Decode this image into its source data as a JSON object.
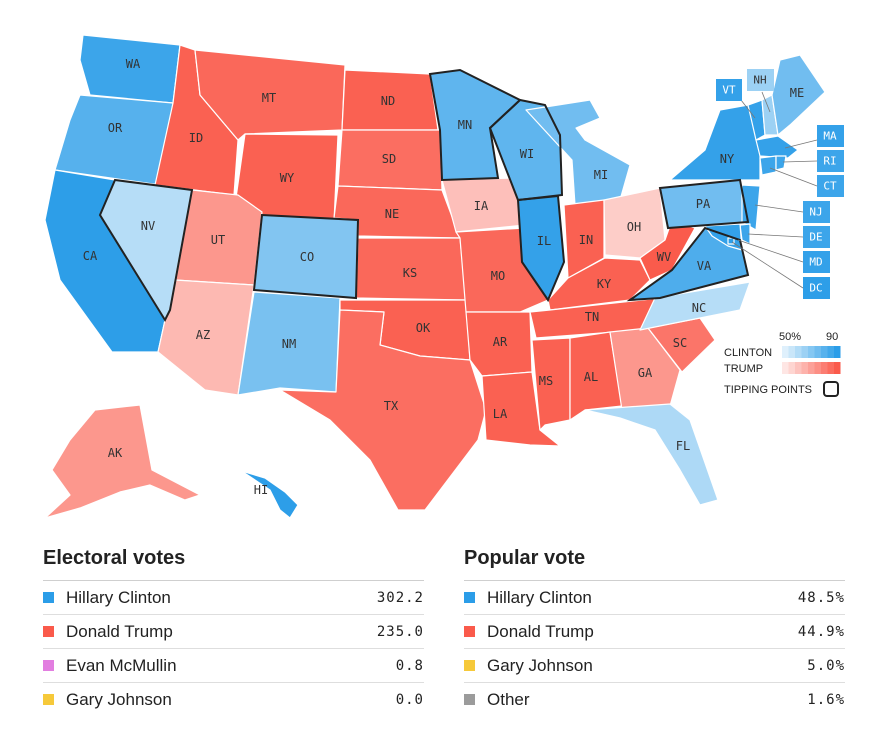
{
  "colors": {
    "clinton": "#2b9de8",
    "trump": "#fa5a4b",
    "mcmullin": "#e27ee0",
    "johnson": "#f6c93a",
    "other": "#9b9b9b"
  },
  "states": [
    {
      "abbr": "WA",
      "party": "D",
      "level": 0.9
    },
    {
      "abbr": "OR",
      "party": "D",
      "level": 0.75
    },
    {
      "abbr": "CA",
      "party": "D",
      "level": 0.99
    },
    {
      "abbr": "NV",
      "party": "D",
      "level": 0.2
    },
    {
      "abbr": "ID",
      "party": "R",
      "level": 0.95
    },
    {
      "abbr": "MT",
      "party": "R",
      "level": 0.9
    },
    {
      "abbr": "WY",
      "party": "R",
      "level": 0.95
    },
    {
      "abbr": "UT",
      "party": "R",
      "level": 0.55
    },
    {
      "abbr": "AZ",
      "party": "R",
      "level": 0.3
    },
    {
      "abbr": "CO",
      "party": "D",
      "level": 0.5
    },
    {
      "abbr": "NM",
      "party": "D",
      "level": 0.55
    },
    {
      "abbr": "ND",
      "party": "R",
      "level": 0.95
    },
    {
      "abbr": "SD",
      "party": "R",
      "level": 0.85
    },
    {
      "abbr": "NE",
      "party": "R",
      "level": 0.9
    },
    {
      "abbr": "KS",
      "party": "R",
      "level": 0.9
    },
    {
      "abbr": "OK",
      "party": "R",
      "level": 0.95
    },
    {
      "abbr": "TX",
      "party": "R",
      "level": 0.85
    },
    {
      "abbr": "MN",
      "party": "D",
      "level": 0.7
    },
    {
      "abbr": "IA",
      "party": "R",
      "level": 0.25
    },
    {
      "abbr": "MO",
      "party": "R",
      "level": 0.9
    },
    {
      "abbr": "AR",
      "party": "R",
      "level": 0.95
    },
    {
      "abbr": "LA",
      "party": "R",
      "level": 0.95
    },
    {
      "abbr": "WI",
      "party": "D",
      "level": 0.7
    },
    {
      "abbr": "IL",
      "party": "D",
      "level": 0.95
    },
    {
      "abbr": "MI",
      "party": "D",
      "level": 0.6
    },
    {
      "abbr": "IN",
      "party": "R",
      "level": 0.95
    },
    {
      "abbr": "OH",
      "party": "R",
      "level": 0.15
    },
    {
      "abbr": "KY",
      "party": "R",
      "level": 0.95
    },
    {
      "abbr": "TN",
      "party": "R",
      "level": 0.95
    },
    {
      "abbr": "MS",
      "party": "R",
      "level": 0.95
    },
    {
      "abbr": "AL",
      "party": "R",
      "level": 0.95
    },
    {
      "abbr": "GA",
      "party": "R",
      "level": 0.55
    },
    {
      "abbr": "FL",
      "party": "D",
      "level": 0.25
    },
    {
      "abbr": "SC",
      "party": "R",
      "level": 0.8
    },
    {
      "abbr": "NC",
      "party": "D",
      "level": 0.2
    },
    {
      "abbr": "VA",
      "party": "D",
      "level": 0.8
    },
    {
      "abbr": "WV",
      "party": "R",
      "level": 0.99
    },
    {
      "abbr": "PA",
      "party": "D",
      "level": 0.6
    },
    {
      "abbr": "NY",
      "party": "D",
      "level": 0.95
    },
    {
      "abbr": "VT",
      "party": "D",
      "level": 0.95
    },
    {
      "abbr": "NH",
      "party": "D",
      "level": 0.35
    },
    {
      "abbr": "ME",
      "party": "D",
      "level": 0.6
    },
    {
      "abbr": "MA",
      "party": "D",
      "level": 0.95
    },
    {
      "abbr": "RI",
      "party": "D",
      "level": 0.9
    },
    {
      "abbr": "CT",
      "party": "D",
      "level": 0.9
    },
    {
      "abbr": "NJ",
      "party": "D",
      "level": 0.9
    },
    {
      "abbr": "DE",
      "party": "D",
      "level": 0.9
    },
    {
      "abbr": "MD",
      "party": "D",
      "level": 0.95
    },
    {
      "abbr": "DC",
      "party": "D",
      "level": 0.99
    },
    {
      "abbr": "AK",
      "party": "R",
      "level": 0.55
    },
    {
      "abbr": "HI",
      "party": "D",
      "level": 0.99
    }
  ],
  "tipping_points": [
    "NV",
    "CO",
    "MN",
    "WI",
    "IL",
    "VA",
    "PA"
  ],
  "legend": {
    "scale_low": "50%",
    "scale_high": "90",
    "clinton_label": "CLINTON",
    "trump_label": "TRUMP",
    "tipping_label": "TIPPING POINTS"
  },
  "electoral": {
    "title": "Electoral votes",
    "rows": [
      {
        "name": "Hillary Clinton",
        "value": "302.2",
        "color": "#2b9de8"
      },
      {
        "name": "Donald Trump",
        "value": "235.0",
        "color": "#fa5a4b"
      },
      {
        "name": "Evan McMullin",
        "value": "0.8",
        "color": "#e27ee0"
      },
      {
        "name": "Gary Johnson",
        "value": "0.0",
        "color": "#f6c93a"
      }
    ]
  },
  "popular": {
    "title": "Popular vote",
    "rows": [
      {
        "name": "Hillary Clinton",
        "value": "48.5%",
        "color": "#2b9de8"
      },
      {
        "name": "Donald Trump",
        "value": "44.9%",
        "color": "#fa5a4b"
      },
      {
        "name": "Gary Johnson",
        "value": "5.0%",
        "color": "#f6c93a"
      },
      {
        "name": "Other",
        "value": "1.6%",
        "color": "#9b9b9b"
      }
    ]
  }
}
